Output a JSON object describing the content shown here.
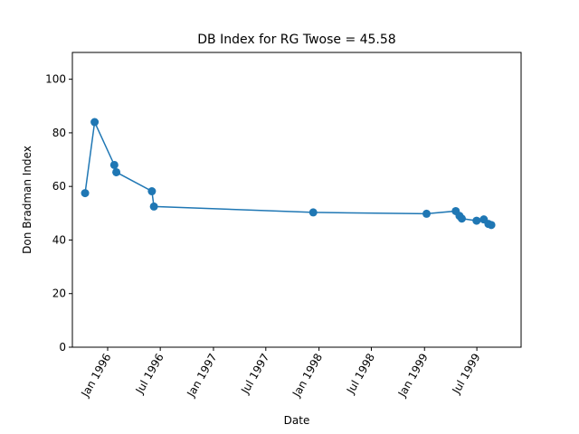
{
  "chart_data": {
    "type": "line",
    "title": "DB Index for RG Twose = 45.58",
    "xlabel": "Date",
    "ylabel": "Don Bradman Index",
    "ylim": [
      0,
      110
    ],
    "xlim": [
      "1995-09-01",
      "1999-12-01"
    ],
    "grid": false,
    "color": "#1f77b4",
    "yticks": [
      0,
      20,
      40,
      60,
      80,
      100
    ],
    "xticks": [
      {
        "date": "1996-01-01",
        "label": "Jan 1996"
      },
      {
        "date": "1996-07-01",
        "label": "Jul 1996"
      },
      {
        "date": "1997-01-01",
        "label": "Jan 1997"
      },
      {
        "date": "1997-07-01",
        "label": "Jul 1997"
      },
      {
        "date": "1998-01-01",
        "label": "Jan 1998"
      },
      {
        "date": "1998-07-01",
        "label": "Jul 1998"
      },
      {
        "date": "1999-01-01",
        "label": "Jan 1999"
      },
      {
        "date": "1999-07-01",
        "label": "Jul 1999"
      }
    ],
    "points": [
      {
        "x": "1995-10-15",
        "y": 57.5
      },
      {
        "x": "1995-11-17",
        "y": 84.0
      },
      {
        "x": "1996-01-24",
        "y": 68.0
      },
      {
        "x": "1996-01-31",
        "y": 65.3
      },
      {
        "x": "1996-06-02",
        "y": 58.2
      },
      {
        "x": "1996-06-09",
        "y": 52.5
      },
      {
        "x": "1997-12-12",
        "y": 50.3
      },
      {
        "x": "1999-01-08",
        "y": 49.8
      },
      {
        "x": "1999-04-19",
        "y": 50.8
      },
      {
        "x": "1999-05-02",
        "y": 49.0
      },
      {
        "x": "1999-05-10",
        "y": 48.0
      },
      {
        "x": "1999-06-30",
        "y": 47.2
      },
      {
        "x": "1999-07-25",
        "y": 47.7
      },
      {
        "x": "1999-08-10",
        "y": 46.0
      },
      {
        "x": "1999-08-20",
        "y": 45.6
      }
    ]
  }
}
